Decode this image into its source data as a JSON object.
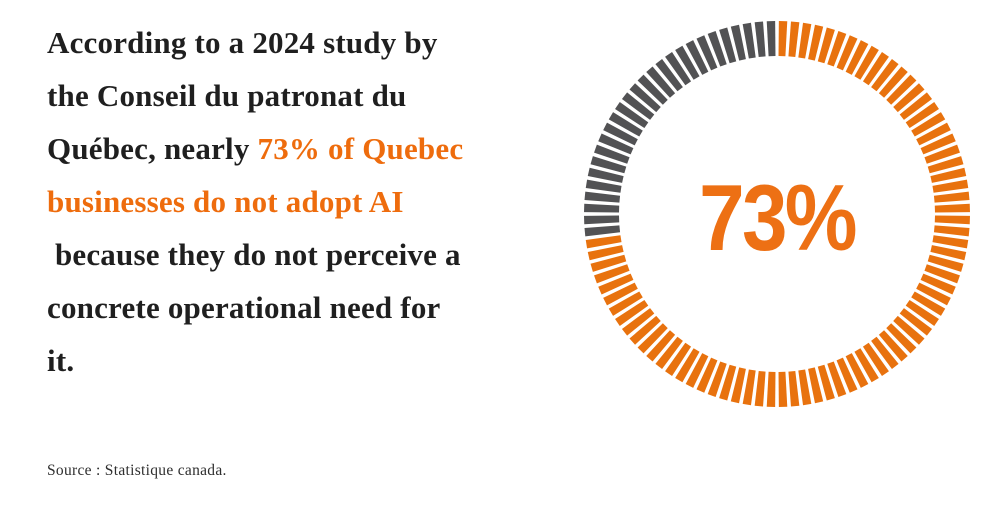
{
  "colors": {
    "background": "#ffffff",
    "text_dark": "#1f1f1f",
    "accent_orange": "#EE6C0D",
    "center_label_orange": "#ED7014",
    "source_gray": "#2e2e2e"
  },
  "paragraph": {
    "line1": "According to a 2024 study by",
    "line2": "the Conseil du patronat du",
    "line3_dark": "Québec, nearly ",
    "line3_accent": "73% of Quebec",
    "line4_accent": "businesses do not adopt AI",
    "line5": " because they do not perceive a",
    "line6": "concrete operational need for",
    "line7": "it."
  },
  "source": {
    "text": "Source : Statistique canada."
  },
  "chart_data": {
    "type": "pie",
    "subtype": "segmented-donut-gauge",
    "title": "",
    "categories": [
      "Quebec businesses that do not adopt AI",
      "Remainder"
    ],
    "values": [
      73,
      27
    ],
    "segment_colors": [
      "#E8720E",
      "#525254"
    ],
    "center_label": "73%",
    "total_ticks": 100,
    "start_angle_deg": 0,
    "direction": "clockwise",
    "outer_radius": 193,
    "inner_radius": 158,
    "tick_step_deg": 3.6,
    "tick_gap_deg": 1.1,
    "legend": "none"
  }
}
